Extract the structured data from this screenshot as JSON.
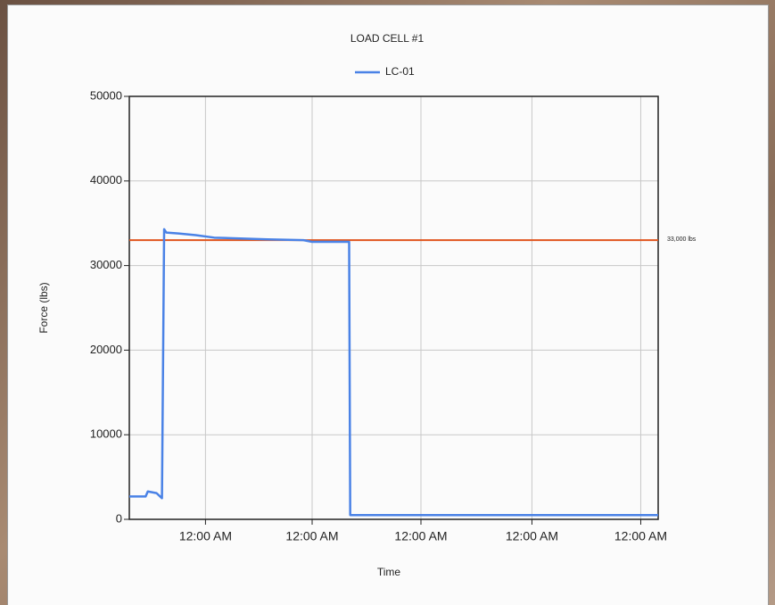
{
  "chart_data": {
    "type": "line",
    "title": "LOAD CELL #1",
    "x_label": "Time",
    "y_label": "Force (lbs)",
    "x": [
      0,
      0.15,
      0.17,
      0.25,
      0.3,
      0.32,
      0.34,
      0.45,
      0.61,
      0.78,
      1.27,
      1.6,
      1.68,
      2.02,
      2.03,
      4.86
    ],
    "series": [
      {
        "name": "LC-01",
        "color": "#4a82e6",
        "values": [
          2700,
          2700,
          3300,
          3100,
          2500,
          34300,
          33900,
          33800,
          33600,
          33300,
          33100,
          33000,
          32800,
          32800,
          500,
          500
        ]
      }
    ],
    "xlim": [
      0,
      4.86
    ],
    "ylim": [
      0,
      50000
    ],
    "xticks": [
      {
        "value": 0.7,
        "label": "12:00 AM"
      },
      {
        "value": 1.68,
        "label": "12:00 AM"
      },
      {
        "value": 2.68,
        "label": "12:00 AM"
      },
      {
        "value": 3.7,
        "label": "12:00 AM"
      },
      {
        "value": 4.7,
        "label": "12:00 AM"
      }
    ],
    "yticks": [
      0,
      10000,
      20000,
      30000,
      40000,
      50000
    ],
    "grid": true,
    "legend": "top",
    "reference_lines": [
      {
        "value": 33000,
        "label": "33,000 lbs",
        "color": "#e0561e"
      }
    ]
  }
}
